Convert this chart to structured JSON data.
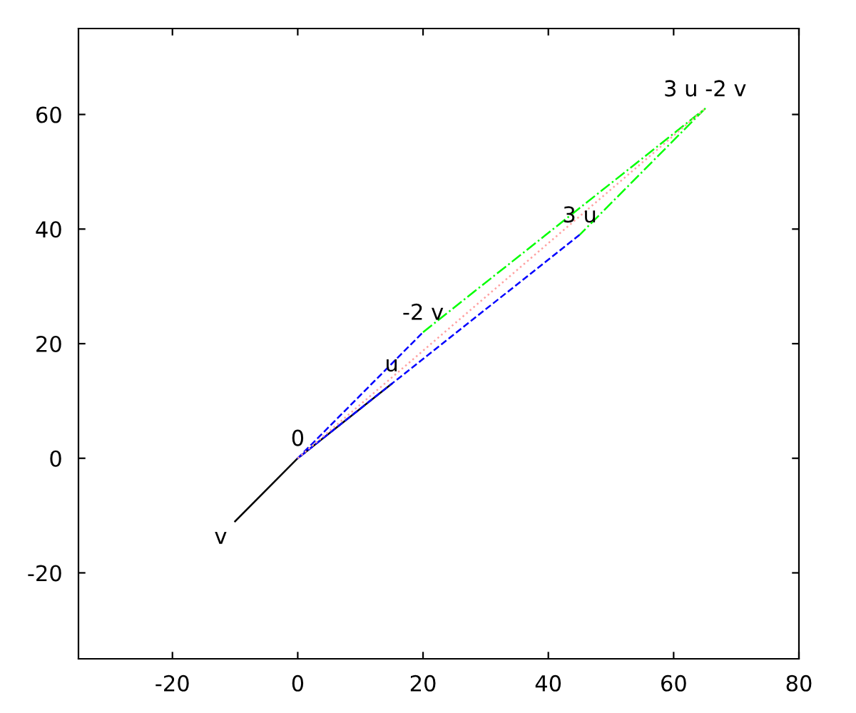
{
  "chart_data": {
    "type": "line",
    "xlim": [
      -35,
      80
    ],
    "ylim": [
      -35,
      75
    ],
    "xticks": [
      -20,
      0,
      20,
      40,
      60,
      80
    ],
    "yticks": [
      -20,
      0,
      20,
      40,
      60
    ],
    "grid": false,
    "legend": false,
    "marker": "none",
    "series": [
      {
        "color": "#000000",
        "line_style": "solid",
        "x": [
          -10,
          0,
          15
        ],
        "values": [
          -11,
          0,
          13
        ]
      },
      {
        "color": "#0000ff",
        "line_style": "dashed",
        "x": [
          45,
          0,
          20
        ],
        "values": [
          39,
          0,
          22
        ]
      },
      {
        "color": "#00ff00",
        "line_style": "dashdot",
        "x": [
          20,
          65,
          45
        ],
        "values": [
          22,
          61,
          39
        ]
      },
      {
        "color": "#ffa0a0",
        "line_style": "dotted",
        "x": [
          0,
          65
        ],
        "values": [
          0,
          61
        ]
      }
    ],
    "annotations": [
      {
        "text": "0",
        "x": 0,
        "y": 0
      },
      {
        "text": "u",
        "x": 15,
        "y": 13
      },
      {
        "text": "v",
        "x": -10,
        "y": -11
      },
      {
        "text": "-2 v",
        "x": 20,
        "y": 22
      },
      {
        "text": "3 u",
        "x": 45,
        "y": 39
      },
      {
        "text": "3 u -2 v",
        "x": 65,
        "y": 61
      }
    ]
  }
}
